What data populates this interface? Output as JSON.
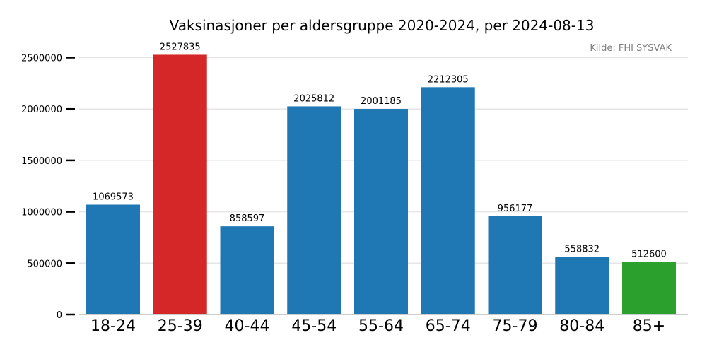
{
  "chart_data": {
    "type": "bar",
    "title": "Vaksinasjoner per aldersgruppe 2020-2024, per 2024-08-13",
    "source": "Kilde: FHI SYSVAK",
    "xlabel": "",
    "ylabel": "",
    "ylim": [
      0,
      2650000
    ],
    "yticks": [
      0,
      500000,
      1000000,
      1500000,
      2000000,
      2500000
    ],
    "ytick_labels": [
      "0",
      "500000",
      "1000000",
      "1500000",
      "2000000",
      "2500000"
    ],
    "grid": true,
    "legend": "none",
    "categories": [
      "18-24",
      "25-39",
      "40-44",
      "45-54",
      "55-64",
      "65-74",
      "75-79",
      "80-84",
      "85+"
    ],
    "values": [
      1069573,
      2527835,
      858597,
      2025812,
      2001185,
      2212305,
      956177,
      558832,
      512600
    ],
    "value_labels": [
      "1069573",
      "2527835",
      "858597",
      "2025812",
      "2001185",
      "2212305",
      "956177",
      "558832",
      "512600"
    ],
    "colors": [
      "#1f77b4",
      "#d62728",
      "#1f77b4",
      "#1f77b4",
      "#1f77b4",
      "#1f77b4",
      "#1f77b4",
      "#1f77b4",
      "#2ca02c"
    ]
  }
}
